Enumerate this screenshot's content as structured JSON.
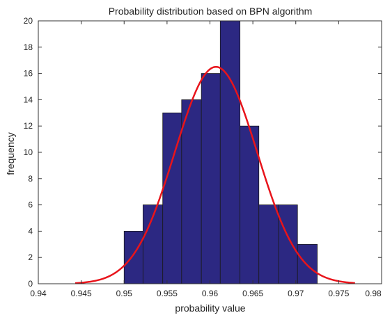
{
  "chart_data": {
    "type": "bar",
    "title": "Probability distribution based on BPN algorithm",
    "xlabel": "probability value",
    "ylabel": "frequency",
    "xlim": [
      0.94,
      0.98
    ],
    "ylim": [
      0,
      20
    ],
    "xticks": [
      "0.94",
      "0.945",
      "0.95",
      "0.955",
      "0.96",
      "0.965",
      "0.97",
      "0.975",
      "0.98"
    ],
    "yticks": [
      "0",
      "2",
      "4",
      "6",
      "8",
      "10",
      "12",
      "14",
      "16",
      "18",
      "20"
    ],
    "grid": false,
    "legend": "none",
    "bins": [
      {
        "x_start": 0.95,
        "x_end": 0.9522,
        "value": 4
      },
      {
        "x_start": 0.9522,
        "x_end": 0.9545,
        "value": 6
      },
      {
        "x_start": 0.9545,
        "x_end": 0.9567,
        "value": 13
      },
      {
        "x_start": 0.9567,
        "x_end": 0.959,
        "value": 14
      },
      {
        "x_start": 0.959,
        "x_end": 0.9612,
        "value": 16
      },
      {
        "x_start": 0.9612,
        "x_end": 0.9635,
        "value": 20
      },
      {
        "x_start": 0.9635,
        "x_end": 0.9657,
        "value": 12
      },
      {
        "x_start": 0.9657,
        "x_end": 0.968,
        "value": 6
      },
      {
        "x_start": 0.968,
        "x_end": 0.9702,
        "value": 6
      },
      {
        "x_start": 0.9702,
        "x_end": 0.9725,
        "value": 3
      }
    ],
    "fit_curve": {
      "type": "normal",
      "mean": 0.9607,
      "std": 0.0048,
      "peak": 16.5,
      "x_range": [
        0.9443,
        0.9769
      ]
    },
    "colors": {
      "bar_fill": "#2c2882",
      "bar_edge": "#1a1a1a",
      "curve": "#e8141b"
    }
  }
}
